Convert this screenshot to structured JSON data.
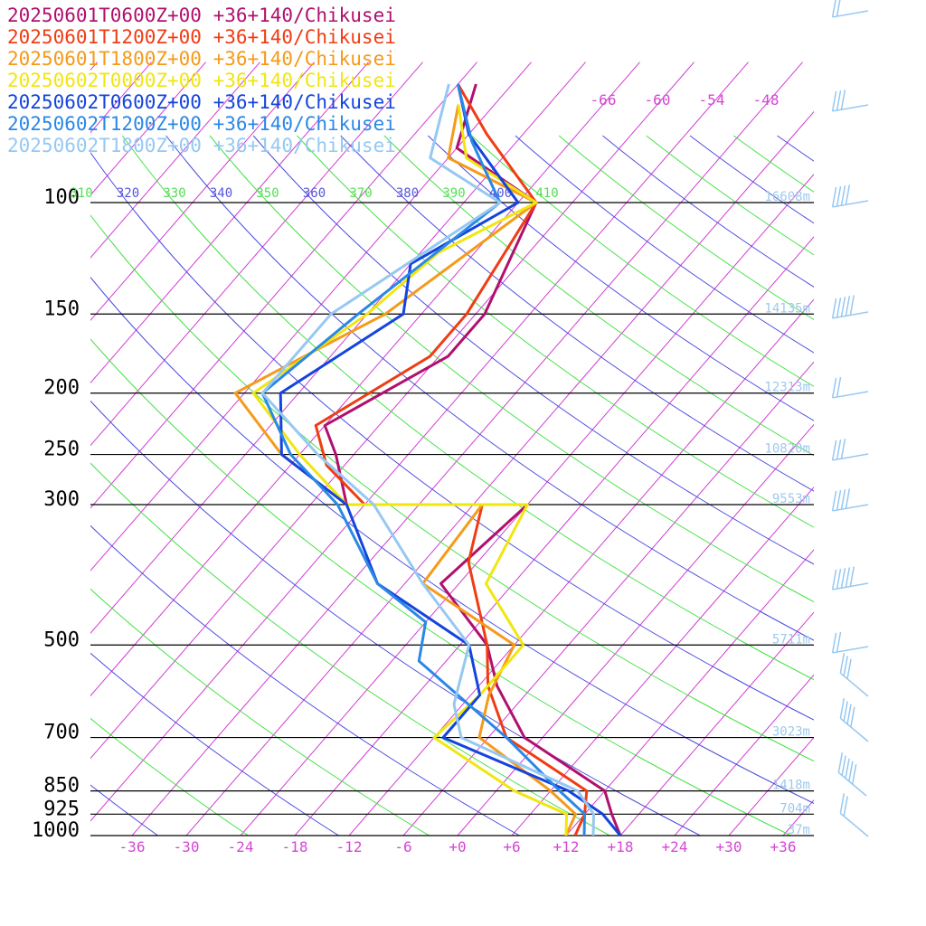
{
  "chart_data": {
    "type": "line",
    "subtype": "skew-t log-p sounding",
    "legend_placement": "top-left",
    "pressure_levels": [
      100,
      150,
      200,
      250,
      300,
      500,
      700,
      850,
      925,
      1000
    ],
    "x_ticks": [
      "-36",
      "-30",
      "-24",
      "-18",
      "-12",
      "-6",
      "+0",
      "+6",
      "+12",
      "+18",
      "+24",
      "+30",
      "+36"
    ],
    "isotherm_top_labels": [
      "-66",
      "-60",
      "-54",
      "-48"
    ],
    "theta_labels": [
      {
        "text": "310",
        "color": "#55dd55"
      },
      {
        "text": "320",
        "color": "#5555dd"
      },
      {
        "text": "330",
        "color": "#55dd55"
      },
      {
        "text": "340",
        "color": "#5555dd"
      },
      {
        "text": "350",
        "color": "#55dd55"
      },
      {
        "text": "360",
        "color": "#5555dd"
      },
      {
        "text": "370",
        "color": "#55dd55"
      },
      {
        "text": "380",
        "color": "#5555dd"
      },
      {
        "text": "390",
        "color": "#55dd55"
      },
      {
        "text": "400",
        "color": "#5555dd"
      },
      {
        "text": "410",
        "color": "#55dd55"
      }
    ],
    "height_labels": [
      {
        "p": 100,
        "text": "16608m"
      },
      {
        "p": 150,
        "text": "14135m"
      },
      {
        "p": 200,
        "text": "12313m"
      },
      {
        "p": 250,
        "text": "10820m"
      },
      {
        "p": 300,
        "text": "9553m"
      },
      {
        "p": 500,
        "text": "5711m"
      },
      {
        "p": 700,
        "text": "3023m"
      },
      {
        "p": 850,
        "text": "1418m"
      },
      {
        "p": 925,
        "text": "704m"
      },
      {
        "p": 1000,
        "text": "37m"
      }
    ],
    "series": [
      {
        "name": "20250601T0600Z+00 +36+140/Chikusei",
        "color": "#b0106e",
        "points": [
          [
            65,
            -70
          ],
          [
            82,
            -66
          ],
          [
            100,
            -52
          ],
          [
            150,
            -47
          ],
          [
            175,
            -47
          ],
          [
            225,
            -54
          ],
          [
            250,
            -50
          ],
          [
            300,
            -44
          ],
          [
            300,
            -24
          ],
          [
            400,
            -26
          ],
          [
            500,
            -15
          ],
          [
            580,
            -10
          ],
          [
            700,
            -2
          ],
          [
            850,
            12
          ],
          [
            925,
            15
          ],
          [
            1000,
            18
          ]
        ]
      },
      {
        "name": "20250601T1200Z+00 +36+140/Chikusei",
        "color": "#f03c14",
        "points": [
          [
            65,
            -72
          ],
          [
            78,
            -64
          ],
          [
            100,
            -52
          ],
          [
            150,
            -49
          ],
          [
            175,
            -49
          ],
          [
            225,
            -55
          ],
          [
            260,
            -50
          ],
          [
            300,
            -42
          ],
          [
            300,
            -29
          ],
          [
            370,
            -25
          ],
          [
            500,
            -15
          ],
          [
            580,
            -11
          ],
          [
            700,
            -4
          ],
          [
            850,
            10
          ],
          [
            925,
            12
          ],
          [
            1000,
            13
          ]
        ]
      },
      {
        "name": "20250601T1800Z+00 +36+140/Chikusei",
        "color": "#f59a1a",
        "points": [
          [
            70,
            -70
          ],
          [
            85,
            -66
          ],
          [
            100,
            -52
          ],
          [
            150,
            -58
          ],
          [
            170,
            -62
          ],
          [
            200,
            -67
          ],
          [
            250,
            -56
          ],
          [
            300,
            -44
          ],
          [
            300,
            -29
          ],
          [
            400,
            -28
          ],
          [
            500,
            -12
          ],
          [
            600,
            -10
          ],
          [
            700,
            -7
          ],
          [
            850,
            6
          ],
          [
            925,
            11
          ],
          [
            1000,
            12
          ]
        ]
      },
      {
        "name": "20250602T0000Z+00 +36+140/Chikusei",
        "color": "#f0e610",
        "points": [
          [
            70,
            -70
          ],
          [
            85,
            -64
          ],
          [
            100,
            -52
          ],
          [
            120,
            -58
          ],
          [
            150,
            -60
          ],
          [
            200,
            -65
          ],
          [
            250,
            -54
          ],
          [
            300,
            -44
          ],
          [
            300,
            -24
          ],
          [
            400,
            -21
          ],
          [
            500,
            -11
          ],
          [
            600,
            -11
          ],
          [
            700,
            -12
          ],
          [
            850,
            2
          ],
          [
            925,
            10
          ],
          [
            1000,
            12
          ]
        ]
      },
      {
        "name": "20250602T0600Z+00 +36+140/Chikusei",
        "color": "#1444dd",
        "points": [
          [
            65,
            -72
          ],
          [
            78,
            -66
          ],
          [
            100,
            -54
          ],
          [
            125,
            -60
          ],
          [
            150,
            -56
          ],
          [
            200,
            -62
          ],
          [
            250,
            -56
          ],
          [
            300,
            -44
          ],
          [
            400,
            -33
          ],
          [
            500,
            -17
          ],
          [
            600,
            -11
          ],
          [
            700,
            -11
          ],
          [
            850,
            8
          ],
          [
            925,
            14
          ],
          [
            1000,
            18
          ]
        ]
      },
      {
        "name": "20250602T1200Z+00 +36+140/Chikusei",
        "color": "#2a88e6",
        "points": [
          [
            65,
            -72
          ],
          [
            80,
            -65
          ],
          [
            100,
            -56
          ],
          [
            150,
            -61
          ],
          [
            200,
            -64
          ],
          [
            250,
            -55
          ],
          [
            300,
            -45
          ],
          [
            400,
            -33
          ],
          [
            460,
            -24
          ],
          [
            530,
            -21
          ],
          [
            700,
            -4
          ],
          [
            850,
            7
          ],
          [
            925,
            12
          ],
          [
            1000,
            14
          ]
        ]
      },
      {
        "name": "20250602T1800Z+00 +36+140/Chikusei",
        "color": "#96c8f2",
        "points": [
          [
            65,
            -73
          ],
          [
            85,
            -68
          ],
          [
            100,
            -56
          ],
          [
            150,
            -64
          ],
          [
            200,
            -64
          ],
          [
            250,
            -52
          ],
          [
            300,
            -41
          ],
          [
            400,
            -28
          ],
          [
            500,
            -17
          ],
          [
            620,
            -13
          ],
          [
            700,
            -9
          ],
          [
            850,
            9
          ],
          [
            925,
            13
          ],
          [
            1000,
            15
          ]
        ]
      }
    ]
  }
}
